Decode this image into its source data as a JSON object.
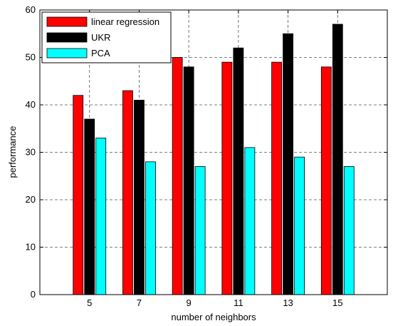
{
  "chart_data": {
    "type": "bar",
    "categories": [
      "5",
      "7",
      "9",
      "11",
      "13",
      "15"
    ],
    "series": [
      {
        "name": "linear regression",
        "values": [
          42,
          43,
          50,
          49,
          49,
          48
        ],
        "color": "#ff0000"
      },
      {
        "name": "UKR",
        "values": [
          37,
          41,
          48,
          52,
          55,
          57
        ],
        "color": "#000000"
      },
      {
        "name": "PCA",
        "values": [
          33,
          28,
          27,
          31,
          29,
          27
        ],
        "color": "#00ffff"
      }
    ],
    "xlabel": "number of neighbors",
    "ylabel": "performance",
    "ylim": [
      0,
      60
    ],
    "yticks": [
      0,
      10,
      20,
      30,
      40,
      50,
      60
    ],
    "grid": true,
    "legend_position": "top-left"
  }
}
